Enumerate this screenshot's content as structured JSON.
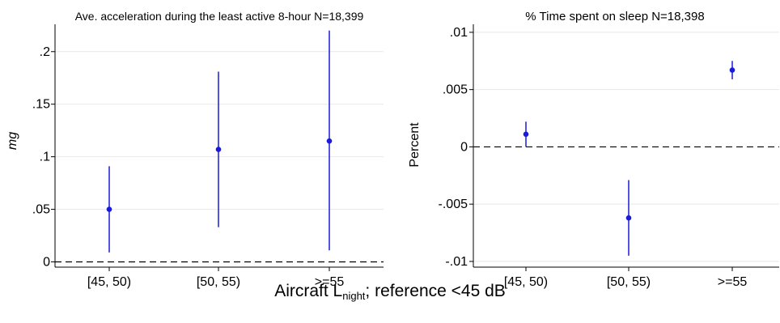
{
  "chart_data": [
    {
      "type": "scatter",
      "title": "Ave. acceleration during the least active 8-hour N=18,399",
      "xlabel": "",
      "ylabel": "mg",
      "categories": [
        "[45, 50)",
        "[50, 55)",
        ">=55"
      ],
      "ylim": [
        -0.005,
        0.226
      ],
      "yticks": [
        0,
        0.05,
        0.1,
        0.15,
        0.2
      ],
      "ytick_labels": [
        "0",
        ".05",
        ".1",
        ".15",
        ".2"
      ],
      "reference_line": 0,
      "series": [
        {
          "values": [
            0.05,
            0.107,
            0.115
          ],
          "ci_low": [
            0.009,
            0.033,
            0.011
          ],
          "ci_high": [
            0.091,
            0.181,
            0.22
          ]
        }
      ],
      "grid": true,
      "color": "#1a1adb"
    },
    {
      "type": "scatter",
      "title": "% Time spent on sleep N=18,398",
      "xlabel": "",
      "ylabel": "Percent",
      "categories": [
        "[45, 50)",
        "[50, 55)",
        ">=55"
      ],
      "ylim": [
        -0.0105,
        0.0107
      ],
      "yticks": [
        -0.01,
        -0.005,
        0,
        0.005,
        0.01
      ],
      "ytick_labels": [
        "-.01",
        "-.005",
        "0",
        ".005",
        ".01"
      ],
      "reference_line": 0,
      "series": [
        {
          "values": [
            0.0011,
            -0.0062,
            0.0067
          ],
          "ci_low": [
            0.0,
            -0.0095,
            0.0059
          ],
          "ci_high": [
            0.0022,
            -0.0029,
            0.0075
          ]
        }
      ],
      "grid": true,
      "color": "#1a1adb"
    }
  ],
  "shared_xlabel": {
    "before": "Aircraft L",
    "sub": "night",
    "after": "; reference <45 dB"
  }
}
